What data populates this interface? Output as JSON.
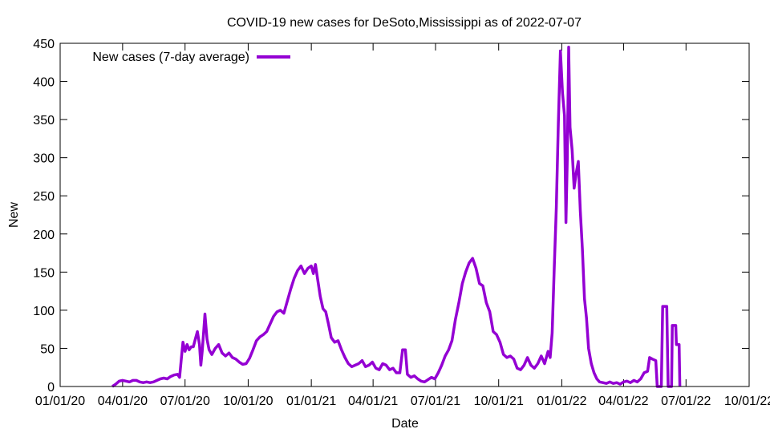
{
  "chart_data": {
    "type": "line",
    "title": "COVID-19 new cases for DeSoto,Mississippi as of 2022-07-07",
    "xlabel": "Date",
    "ylabel": "New",
    "xlim": [
      "2020-01-01",
      "2022-10-01"
    ],
    "ylim": [
      0,
      450
    ],
    "x_ticks": [
      {
        "date": "2020-01-01",
        "label": "01/01/20"
      },
      {
        "date": "2020-04-01",
        "label": "04/01/20"
      },
      {
        "date": "2020-07-01",
        "label": "07/01/20"
      },
      {
        "date": "2020-10-01",
        "label": "10/01/20"
      },
      {
        "date": "2021-01-01",
        "label": "01/01/21"
      },
      {
        "date": "2021-04-01",
        "label": "04/01/21"
      },
      {
        "date": "2021-07-01",
        "label": "07/01/21"
      },
      {
        "date": "2021-10-01",
        "label": "10/01/21"
      },
      {
        "date": "2022-01-01",
        "label": "01/01/22"
      },
      {
        "date": "2022-04-01",
        "label": "04/01/22"
      },
      {
        "date": "2022-07-01",
        "label": "07/01/22"
      },
      {
        "date": "2022-10-01",
        "label": "10/01/22"
      }
    ],
    "y_ticks": [
      0,
      50,
      100,
      150,
      200,
      250,
      300,
      350,
      400,
      450
    ],
    "grid": false,
    "legend": "top-left",
    "series": [
      {
        "name": "New cases (7-day average)",
        "color": "#9400d3",
        "points": [
          [
            "2020-03-17",
            0
          ],
          [
            "2020-03-22",
            3
          ],
          [
            "2020-03-27",
            7
          ],
          [
            "2020-04-01",
            8
          ],
          [
            "2020-04-06",
            7
          ],
          [
            "2020-04-11",
            6
          ],
          [
            "2020-04-16",
            8
          ],
          [
            "2020-04-21",
            8
          ],
          [
            "2020-04-26",
            6
          ],
          [
            "2020-05-01",
            5
          ],
          [
            "2020-05-06",
            6
          ],
          [
            "2020-05-11",
            5
          ],
          [
            "2020-05-16",
            6
          ],
          [
            "2020-05-21",
            8
          ],
          [
            "2020-05-26",
            10
          ],
          [
            "2020-05-31",
            11
          ],
          [
            "2020-06-05",
            10
          ],
          [
            "2020-06-10",
            13
          ],
          [
            "2020-06-15",
            15
          ],
          [
            "2020-06-20",
            16
          ],
          [
            "2020-06-23",
            12
          ],
          [
            "2020-06-26",
            40
          ],
          [
            "2020-06-28",
            58
          ],
          [
            "2020-07-01",
            46
          ],
          [
            "2020-07-04",
            55
          ],
          [
            "2020-07-07",
            48
          ],
          [
            "2020-07-10",
            52
          ],
          [
            "2020-07-13",
            52
          ],
          [
            "2020-07-16",
            62
          ],
          [
            "2020-07-19",
            72
          ],
          [
            "2020-07-22",
            55
          ],
          [
            "2020-07-24",
            28
          ],
          [
            "2020-07-26",
            46
          ],
          [
            "2020-07-28",
            70
          ],
          [
            "2020-07-30",
            95
          ],
          [
            "2020-08-02",
            62
          ],
          [
            "2020-08-05",
            48
          ],
          [
            "2020-08-09",
            42
          ],
          [
            "2020-08-14",
            50
          ],
          [
            "2020-08-19",
            55
          ],
          [
            "2020-08-24",
            44
          ],
          [
            "2020-08-29",
            40
          ],
          [
            "2020-09-03",
            44
          ],
          [
            "2020-09-08",
            38
          ],
          [
            "2020-09-13",
            36
          ],
          [
            "2020-09-18",
            32
          ],
          [
            "2020-09-23",
            29
          ],
          [
            "2020-09-28",
            30
          ],
          [
            "2020-10-03",
            37
          ],
          [
            "2020-10-08",
            48
          ],
          [
            "2020-10-13",
            60
          ],
          [
            "2020-10-18",
            65
          ],
          [
            "2020-10-23",
            68
          ],
          [
            "2020-10-28",
            72
          ],
          [
            "2020-11-02",
            82
          ],
          [
            "2020-11-07",
            92
          ],
          [
            "2020-11-12",
            98
          ],
          [
            "2020-11-17",
            100
          ],
          [
            "2020-11-22",
            96
          ],
          [
            "2020-11-27",
            112
          ],
          [
            "2020-12-02",
            128
          ],
          [
            "2020-12-07",
            142
          ],
          [
            "2020-12-12",
            152
          ],
          [
            "2020-12-17",
            158
          ],
          [
            "2020-12-22",
            148
          ],
          [
            "2020-12-27",
            155
          ],
          [
            "2021-01-01",
            158
          ],
          [
            "2021-01-04",
            148
          ],
          [
            "2021-01-07",
            160
          ],
          [
            "2021-01-10",
            142
          ],
          [
            "2021-01-14",
            118
          ],
          [
            "2021-01-18",
            102
          ],
          [
            "2021-01-22",
            98
          ],
          [
            "2021-01-26",
            82
          ],
          [
            "2021-01-30",
            64
          ],
          [
            "2021-02-04",
            58
          ],
          [
            "2021-02-09",
            60
          ],
          [
            "2021-02-14",
            48
          ],
          [
            "2021-02-19",
            38
          ],
          [
            "2021-02-24",
            30
          ],
          [
            "2021-03-01",
            26
          ],
          [
            "2021-03-06",
            28
          ],
          [
            "2021-03-11",
            30
          ],
          [
            "2021-03-16",
            34
          ],
          [
            "2021-03-21",
            26
          ],
          [
            "2021-03-26",
            28
          ],
          [
            "2021-03-31",
            32
          ],
          [
            "2021-04-05",
            24
          ],
          [
            "2021-04-10",
            22
          ],
          [
            "2021-04-15",
            30
          ],
          [
            "2021-04-20",
            28
          ],
          [
            "2021-04-25",
            22
          ],
          [
            "2021-04-30",
            24
          ],
          [
            "2021-05-05",
            18
          ],
          [
            "2021-05-10",
            18
          ],
          [
            "2021-05-14",
            48
          ],
          [
            "2021-05-18",
            48
          ],
          [
            "2021-05-21",
            16
          ],
          [
            "2021-05-26",
            12
          ],
          [
            "2021-05-31",
            14
          ],
          [
            "2021-06-05",
            10
          ],
          [
            "2021-06-10",
            7
          ],
          [
            "2021-06-15",
            6
          ],
          [
            "2021-06-20",
            9
          ],
          [
            "2021-06-25",
            12
          ],
          [
            "2021-06-30",
            10
          ],
          [
            "2021-07-05",
            18
          ],
          [
            "2021-07-10",
            28
          ],
          [
            "2021-07-15",
            40
          ],
          [
            "2021-07-20",
            48
          ],
          [
            "2021-07-25",
            60
          ],
          [
            "2021-07-30",
            88
          ],
          [
            "2021-08-04",
            110
          ],
          [
            "2021-08-09",
            135
          ],
          [
            "2021-08-14",
            150
          ],
          [
            "2021-08-19",
            162
          ],
          [
            "2021-08-24",
            168
          ],
          [
            "2021-08-29",
            155
          ],
          [
            "2021-09-03",
            135
          ],
          [
            "2021-09-08",
            132
          ],
          [
            "2021-09-13",
            110
          ],
          [
            "2021-09-18",
            98
          ],
          [
            "2021-09-23",
            72
          ],
          [
            "2021-09-28",
            68
          ],
          [
            "2021-10-03",
            58
          ],
          [
            "2021-10-08",
            42
          ],
          [
            "2021-10-13",
            38
          ],
          [
            "2021-10-18",
            40
          ],
          [
            "2021-10-23",
            36
          ],
          [
            "2021-10-28",
            24
          ],
          [
            "2021-11-02",
            22
          ],
          [
            "2021-11-07",
            28
          ],
          [
            "2021-11-12",
            38
          ],
          [
            "2021-11-17",
            28
          ],
          [
            "2021-11-22",
            24
          ],
          [
            "2021-11-27",
            30
          ],
          [
            "2021-12-02",
            40
          ],
          [
            "2021-12-07",
            30
          ],
          [
            "2021-12-12",
            46
          ],
          [
            "2021-12-15",
            38
          ],
          [
            "2021-12-18",
            70
          ],
          [
            "2021-12-21",
            155
          ],
          [
            "2021-12-24",
            235
          ],
          [
            "2021-12-27",
            345
          ],
          [
            "2021-12-30",
            440
          ],
          [
            "2022-01-02",
            385
          ],
          [
            "2022-01-05",
            355
          ],
          [
            "2022-01-07",
            215
          ],
          [
            "2022-01-09",
            300
          ],
          [
            "2022-01-11",
            445
          ],
          [
            "2022-01-13",
            340
          ],
          [
            "2022-01-16",
            310
          ],
          [
            "2022-01-19",
            260
          ],
          [
            "2022-01-22",
            280
          ],
          [
            "2022-01-25",
            295
          ],
          [
            "2022-01-28",
            230
          ],
          [
            "2022-01-31",
            180
          ],
          [
            "2022-02-03",
            115
          ],
          [
            "2022-02-06",
            90
          ],
          [
            "2022-02-09",
            50
          ],
          [
            "2022-02-13",
            30
          ],
          [
            "2022-02-17",
            18
          ],
          [
            "2022-02-21",
            10
          ],
          [
            "2022-02-25",
            6
          ],
          [
            "2022-03-02",
            5
          ],
          [
            "2022-03-07",
            4
          ],
          [
            "2022-03-12",
            6
          ],
          [
            "2022-03-17",
            4
          ],
          [
            "2022-03-22",
            5
          ],
          [
            "2022-03-27",
            3
          ],
          [
            "2022-04-01",
            6
          ],
          [
            "2022-04-06",
            7
          ],
          [
            "2022-04-11",
            5
          ],
          [
            "2022-04-16",
            8
          ],
          [
            "2022-04-21",
            6
          ],
          [
            "2022-04-26",
            10
          ],
          [
            "2022-05-01",
            18
          ],
          [
            "2022-05-06",
            20
          ],
          [
            "2022-05-09",
            38
          ],
          [
            "2022-05-13",
            36
          ],
          [
            "2022-05-18",
            34
          ],
          [
            "2022-05-20",
            0
          ],
          [
            "2022-05-26",
            0
          ],
          [
            "2022-05-28",
            105
          ],
          [
            "2022-06-03",
            105
          ],
          [
            "2022-06-05",
            0
          ],
          [
            "2022-06-10",
            0
          ],
          [
            "2022-06-11",
            80
          ],
          [
            "2022-06-16",
            80
          ],
          [
            "2022-06-17",
            55
          ],
          [
            "2022-06-21",
            55
          ],
          [
            "2022-06-22",
            0
          ]
        ]
      }
    ]
  }
}
